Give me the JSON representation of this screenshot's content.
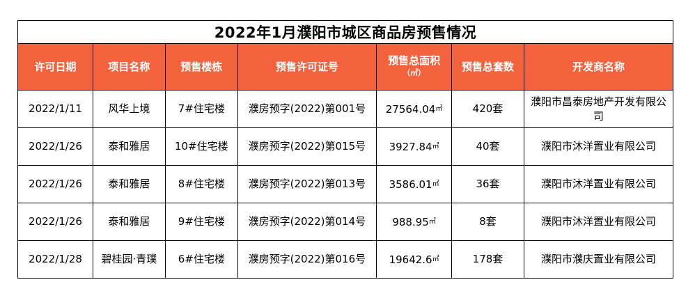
{
  "title": "2022年1月濮阳市城区商品房预售情况",
  "header": {
    "date": "许可日期",
    "project": "项目名称",
    "building": "预售楼栋",
    "license": "预售许可证号",
    "area": "预售总面积",
    "area_unit": "（㎡）",
    "units": "预售总套数",
    "developer": "开发商名称"
  },
  "colors": {
    "header_bg": "#f4623d",
    "header_text": "#ffffff",
    "border": "#000000"
  },
  "rows": [
    {
      "date": "2022/1/11",
      "project": "风华上境",
      "building": "7#住宅楼",
      "license": "濮房预字(2022)第001号",
      "area": "27564.04",
      "area_unit": "㎡",
      "units": "420套",
      "developer": "濮阳市昌泰房地产开发有限公司"
    },
    {
      "date": "2022/1/26",
      "project": "泰和雅居",
      "building": "10#住宅楼",
      "license": "濮房预字(2022)第015号",
      "area": "3927.84",
      "area_unit": "㎡",
      "units": "40套",
      "developer": "濮阳市沐洋置业有限公司"
    },
    {
      "date": "2022/1/26",
      "project": "泰和雅居",
      "building": "8#住宅楼",
      "license": "濮房预字(2022)第013号",
      "area": "3586.01",
      "area_unit": "㎡",
      "units": "36套",
      "developer": "濮阳市沐洋置业有限公司"
    },
    {
      "date": "2022/1/26",
      "project": "泰和雅居",
      "building": "9#住宅楼",
      "license": "濮房预字(2022)第014号",
      "area": "988.95",
      "area_unit": "㎡",
      "units": "8套",
      "developer": "濮阳市沐洋置业有限公司"
    },
    {
      "date": "2022/1/28",
      "project": "碧桂园·青璞",
      "building": "6#住宅楼",
      "license": "濮房预字(2022)第016号",
      "area": "19642.6",
      "area_unit": "㎡",
      "units": "178套",
      "developer": "濮阳市濮庆置业有限公司"
    }
  ]
}
